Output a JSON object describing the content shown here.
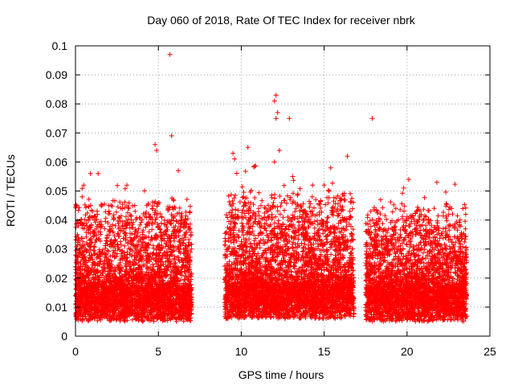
{
  "chart_data": {
    "type": "scatter",
    "title": "Day 060 of 2018, Rate Of TEC Index for receiver nbrk",
    "xlabel": "GPS time / hours",
    "ylabel": "ROTI / TECUs",
    "xlim": [
      0,
      25
    ],
    "ylim": [
      0,
      0.1
    ],
    "x_ticks": [
      0,
      5,
      10,
      15,
      20,
      25
    ],
    "y_ticks": [
      0,
      0.01,
      0.02,
      0.03,
      0.04,
      0.05,
      0.06,
      0.07,
      0.08,
      0.09,
      0.1
    ],
    "x_tick_labels": [
      "0",
      "5",
      "10",
      "15",
      "20",
      "25"
    ],
    "y_tick_labels": [
      "0",
      "0.01",
      "0.02",
      "0.03",
      "0.04",
      "0.05",
      "0.06",
      "0.07",
      "0.08",
      "0.09",
      "0.1"
    ],
    "grid": true,
    "marker": "+",
    "series": [
      {
        "name": "ROTI",
        "color": "#ff0000",
        "segments": [
          {
            "x_start": 0.0,
            "x_end": 7.0,
            "baseline": 0.011,
            "spread": 0.016
          },
          {
            "x_start": 9.0,
            "x_end": 16.8,
            "baseline": 0.012,
            "spread": 0.017
          },
          {
            "x_start": 17.5,
            "x_end": 23.6,
            "baseline": 0.011,
            "spread": 0.015
          }
        ],
        "notable_points": [
          {
            "x": 5.7,
            "y": 0.097
          },
          {
            "x": 12.1,
            "y": 0.083
          },
          {
            "x": 12.0,
            "y": 0.081
          },
          {
            "x": 12.2,
            "y": 0.077
          },
          {
            "x": 12.1,
            "y": 0.075
          },
          {
            "x": 12.9,
            "y": 0.075
          },
          {
            "x": 17.9,
            "y": 0.075
          },
          {
            "x": 5.8,
            "y": 0.069
          },
          {
            "x": 4.8,
            "y": 0.066
          },
          {
            "x": 4.9,
            "y": 0.064
          },
          {
            "x": 12.3,
            "y": 0.064
          },
          {
            "x": 9.5,
            "y": 0.063
          },
          {
            "x": 10.4,
            "y": 0.065
          },
          {
            "x": 16.4,
            "y": 0.062
          },
          {
            "x": 9.6,
            "y": 0.061
          },
          {
            "x": 12.0,
            "y": 0.06
          },
          {
            "x": 6.2,
            "y": 0.057
          },
          {
            "x": 0.9,
            "y": 0.056
          },
          {
            "x": 13.1,
            "y": 0.055
          },
          {
            "x": 20.1,
            "y": 0.054
          },
          {
            "x": 21.8,
            "y": 0.053
          },
          {
            "x": 3.1,
            "y": 0.052
          },
          {
            "x": 0.5,
            "y": 0.052
          },
          {
            "x": 14.3,
            "y": 0.052
          },
          {
            "x": 15.0,
            "y": 0.052
          },
          {
            "x": 19.8,
            "y": 0.051
          },
          {
            "x": 0.4,
            "y": 0.048
          },
          {
            "x": 5.9,
            "y": 0.047
          },
          {
            "x": 18.4,
            "y": 0.047
          },
          {
            "x": 2.0,
            "y": 0.045
          },
          {
            "x": 4.3,
            "y": 0.045
          },
          {
            "x": 13.6,
            "y": 0.045
          },
          {
            "x": 23.2,
            "y": 0.04
          }
        ]
      }
    ]
  }
}
